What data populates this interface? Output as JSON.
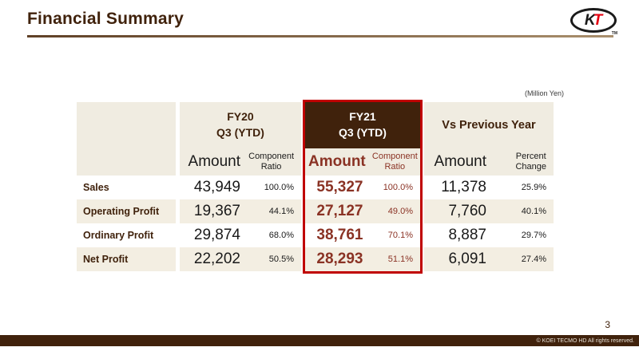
{
  "page": {
    "title": "Financial Summary",
    "unit_note": "(Million Yen)",
    "page_number": "3",
    "copyright": "© KOEI TECMO HD All rights reserved."
  },
  "logo": {
    "k": "K",
    "t": "T",
    "tm": "TM"
  },
  "table": {
    "groups": {
      "fy20": {
        "title": "FY20\nQ3 (YTD)",
        "sub_amount": "Amount",
        "sub_ratio": "Component\nRatio"
      },
      "fy21": {
        "title": "FY21\nQ3 (YTD)",
        "sub_amount": "Amount",
        "sub_ratio": "Component\nRatio"
      },
      "vs": {
        "title": "Vs Previous Year",
        "sub_amount": "Amount",
        "sub_ratio": "Percent\nChange"
      }
    },
    "rows": [
      {
        "label": "Sales",
        "fy20_amount": "43,949",
        "fy20_ratio": "100.0%",
        "fy21_amount": "55,327",
        "fy21_ratio": "100.0%",
        "vs_amount": "11,378",
        "vs_change": "25.9%"
      },
      {
        "label": "Operating Profit",
        "fy20_amount": "19,367",
        "fy20_ratio": "44.1%",
        "fy21_amount": "27,127",
        "fy21_ratio": "49.0%",
        "vs_amount": "7,760",
        "vs_change": "40.1%"
      },
      {
        "label": "Ordinary Profit",
        "fy20_amount": "29,874",
        "fy20_ratio": "68.0%",
        "fy21_amount": "38,761",
        "fy21_ratio": "70.1%",
        "vs_amount": "8,887",
        "vs_change": "29.7%"
      },
      {
        "label": "Net Profit",
        "fy20_amount": "22,202",
        "fy20_ratio": "50.5%",
        "fy21_amount": "28,293",
        "fy21_ratio": "51.1%",
        "vs_amount": "6,091",
        "vs_change": "27.4%"
      }
    ]
  },
  "colors": {
    "brand_brown": "#40220c",
    "highlight_red": "#c00000",
    "fy21_value_red": "#8a3224",
    "header_beige": "#f0ece1",
    "row_beige": "#f3eee2"
  }
}
